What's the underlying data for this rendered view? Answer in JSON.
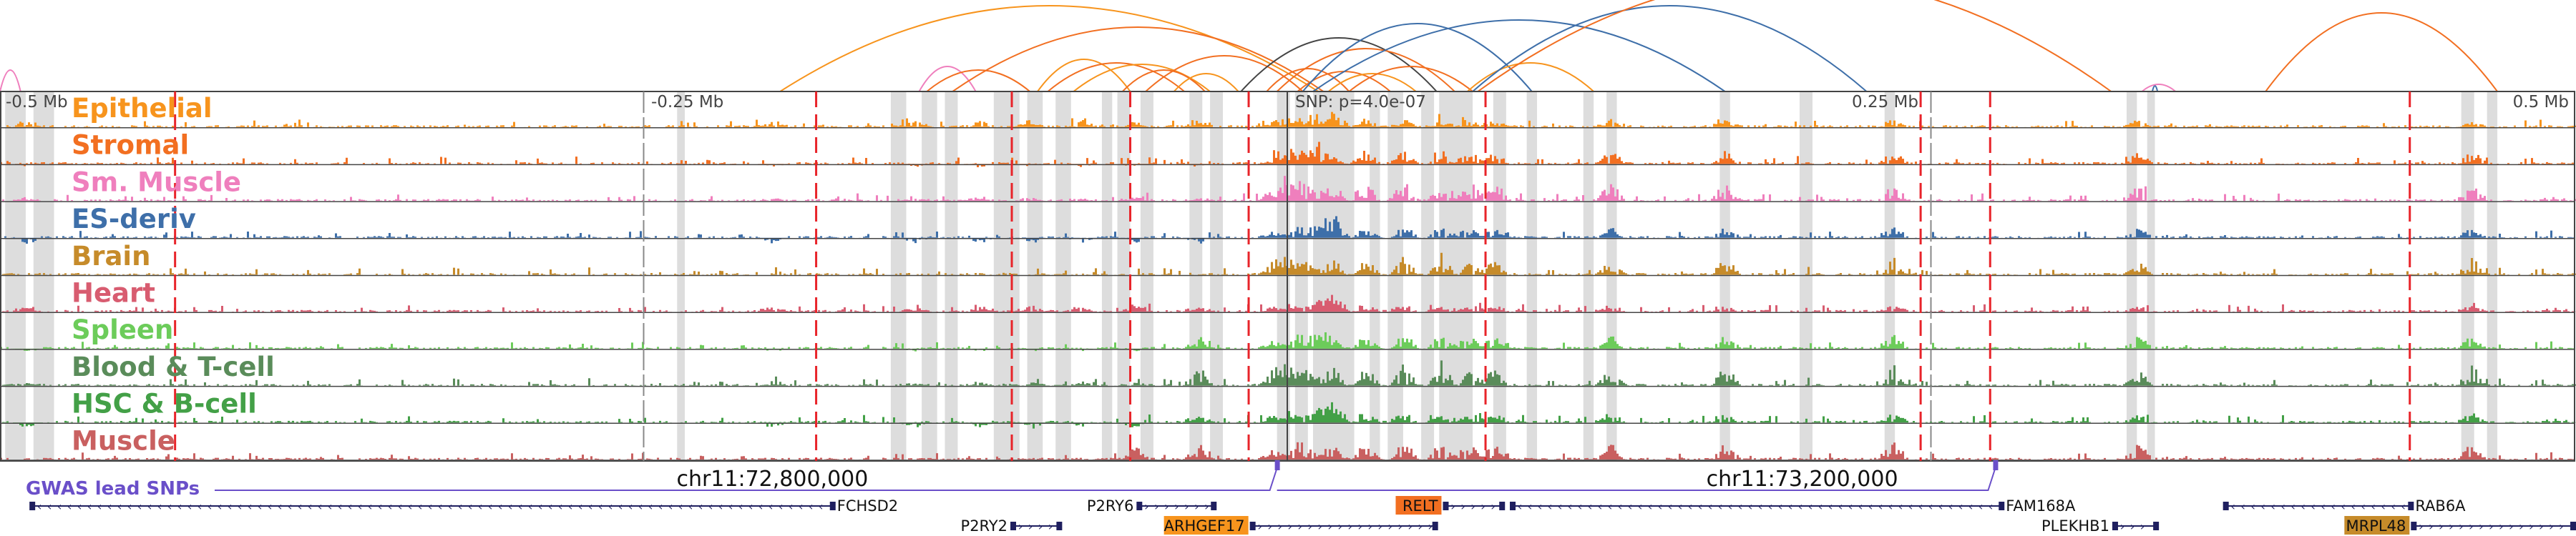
{
  "colors": {
    "frame": "#444444",
    "highlight": "#dddddd",
    "red_dash": "#e8242a",
    "gwas": "#6a4fc9",
    "gene": "#1f1f5f"
  },
  "axis": {
    "start_mb": -0.5,
    "end_mb": 0.5,
    "tick_labels": [
      "-0.5 Mb",
      "-0.25 Mb",
      "0.25 Mb",
      "0.5 Mb"
    ],
    "snp_label": "SNP: p=4.0e-07"
  },
  "tracks": [
    {
      "name": "Epithelial",
      "color": "#f7941d"
    },
    {
      "name": "Stromal",
      "color": "#f26f21"
    },
    {
      "name": "Sm. Muscle",
      "color": "#ef7fbd"
    },
    {
      "name": "ES-deriv",
      "color": "#3e6fa9"
    },
    {
      "name": "Brain",
      "color": "#c68b2a"
    },
    {
      "name": "Heart",
      "color": "#d85c70"
    },
    {
      "name": "Spleen",
      "color": "#6ccc5a"
    },
    {
      "name": "Blood & T-cell",
      "color": "#5a8c5a"
    },
    {
      "name": "HSC & B-cell",
      "color": "#43a047"
    },
    {
      "name": "Muscle",
      "color": "#c96060"
    }
  ],
  "highlight_regions_mb": [
    [
      -0.498,
      -0.49
    ],
    [
      -0.487,
      -0.479
    ],
    [
      -0.237,
      -0.234
    ],
    [
      -0.154,
      -0.148
    ],
    [
      -0.142,
      -0.136
    ],
    [
      -0.133,
      -0.128
    ],
    [
      -0.114,
      -0.104
    ],
    [
      -0.101,
      -0.095
    ],
    [
      -0.09,
      -0.084
    ],
    [
      -0.072,
      -0.068
    ],
    [
      -0.066,
      -0.061
    ],
    [
      -0.057,
      -0.052
    ],
    [
      -0.038,
      -0.033
    ],
    [
      -0.03,
      -0.025
    ],
    [
      -0.004,
      0.001
    ],
    [
      0.003,
      0.008
    ],
    [
      0.01,
      0.026
    ],
    [
      0.032,
      0.036
    ],
    [
      0.039,
      0.045
    ],
    [
      0.052,
      0.057
    ],
    [
      0.059,
      0.072
    ],
    [
      0.08,
      0.085
    ],
    [
      0.093,
      0.097
    ],
    [
      0.115,
      0.119
    ],
    [
      0.124,
      0.128
    ],
    [
      0.168,
      0.172
    ],
    [
      0.199,
      0.204
    ],
    [
      0.232,
      0.236
    ],
    [
      0.326,
      0.33
    ],
    [
      0.334,
      0.337
    ],
    [
      0.456,
      0.461
    ],
    [
      0.466,
      0.47
    ]
  ],
  "red_lines_mb": [
    -0.432,
    -0.183,
    -0.107,
    -0.061,
    -0.015,
    0.077,
    0.246,
    0.273,
    0.436
  ],
  "grey_lines_mb": [
    -0.25,
    0.25
  ],
  "snp_mb": 0.0,
  "coordinate_labels": [
    {
      "text": "chr11:72,800,000",
      "mb": -0.2
    },
    {
      "text": "chr11:73,200,000",
      "mb": 0.2
    }
  ],
  "gwas": {
    "label": "GWAS lead SNPs",
    "snps_mb": [
      -0.004,
      0.275
    ]
  },
  "genes": [
    {
      "name": "FCHSD2",
      "start": -0.488,
      "end": -0.176,
      "row": 0,
      "strand": "-",
      "label_side": "right"
    },
    {
      "name": "P2RY6",
      "start": -0.058,
      "end": -0.028,
      "row": 0,
      "strand": "+",
      "label_side": "left"
    },
    {
      "name": "P2RY2",
      "start": -0.107,
      "end": -0.088,
      "row": 1,
      "strand": "+",
      "label_side": "left"
    },
    {
      "name": "ARHGEF17",
      "start": -0.014,
      "end": 0.058,
      "row": 1,
      "strand": "+",
      "label_side": "left",
      "badge": "#f7941d"
    },
    {
      "name": "RELT",
      "start": 0.061,
      "end": 0.084,
      "row": 0,
      "strand": "+",
      "label_side": "left",
      "badge": "#f26f21"
    },
    {
      "name": "FAM168A",
      "start": 0.087,
      "end": 0.278,
      "row": 0,
      "strand": "-",
      "label_side": "right"
    },
    {
      "name": "PLEKHB1",
      "start": 0.321,
      "end": 0.338,
      "row": 1,
      "strand": "+",
      "label_side": "left"
    },
    {
      "name": "RAB6A",
      "start": 0.364,
      "end": 0.437,
      "row": 0,
      "strand": "-",
      "label_side": "right"
    },
    {
      "name": "MRPL48",
      "start": 0.437,
      "end": 0.5,
      "row": 1,
      "strand": "+",
      "label_side": "left",
      "badge": "#c68b2a"
    }
  ],
  "loops": [
    {
      "a": -0.5,
      "b": -0.492,
      "color": "#ef7fbd",
      "h": 30
    },
    {
      "a": -0.197,
      "b": 0.012,
      "color": "#f7941d",
      "h": 120
    },
    {
      "a": -0.143,
      "b": -0.121,
      "color": "#ef7fbd",
      "h": 35
    },
    {
      "a": -0.14,
      "b": -0.1,
      "color": "#f26f21",
      "h": 30
    },
    {
      "a": -0.13,
      "b": 0.014,
      "color": "#f26f21",
      "h": 90
    },
    {
      "a": -0.097,
      "b": -0.061,
      "color": "#f7941d",
      "h": 45
    },
    {
      "a": -0.093,
      "b": -0.04,
      "color": "#f26f21",
      "h": 40
    },
    {
      "a": -0.083,
      "b": -0.03,
      "color": "#f7941d",
      "h": 38
    },
    {
      "a": -0.064,
      "b": -0.032,
      "color": "#f26f21",
      "h": 30
    },
    {
      "a": -0.055,
      "b": 0.006,
      "color": "#f26f21",
      "h": 50
    },
    {
      "a": -0.044,
      "b": -0.019,
      "color": "#f7941d",
      "h": 25
    },
    {
      "a": -0.018,
      "b": 0.058,
      "color": "#444444",
      "h": 75
    },
    {
      "a": -0.008,
      "b": 0.024,
      "color": "#f26f21",
      "h": 32
    },
    {
      "a": -0.004,
      "b": 0.065,
      "color": "#f26f21",
      "h": 60
    },
    {
      "a": 0.004,
      "b": 0.04,
      "color": "#f26f21",
      "h": 28
    },
    {
      "a": 0.006,
      "b": 0.095,
      "color": "#3e6fa9",
      "h": 95
    },
    {
      "a": 0.01,
      "b": 0.17,
      "color": "#3e6fa9",
      "h": 100
    },
    {
      "a": 0.016,
      "b": 0.05,
      "color": "#f7941d",
      "h": 25
    },
    {
      "a": 0.024,
      "b": 0.072,
      "color": "#f26f21",
      "h": 35
    },
    {
      "a": 0.07,
      "b": 0.119,
      "color": "#f7941d",
      "h": 40
    },
    {
      "a": 0.072,
      "b": 0.225,
      "color": "#3e6fa9",
      "h": 120
    },
    {
      "a": 0.074,
      "b": 0.32,
      "color": "#f26f21",
      "h": 160
    },
    {
      "a": 0.336,
      "b": 0.338,
      "color": "#3e6fa9",
      "h": 8
    },
    {
      "a": 0.332,
      "b": 0.345,
      "color": "#ef7fbd",
      "h": 10
    },
    {
      "a": 0.38,
      "b": 0.47,
      "color": "#f26f21",
      "h": 110
    }
  ]
}
